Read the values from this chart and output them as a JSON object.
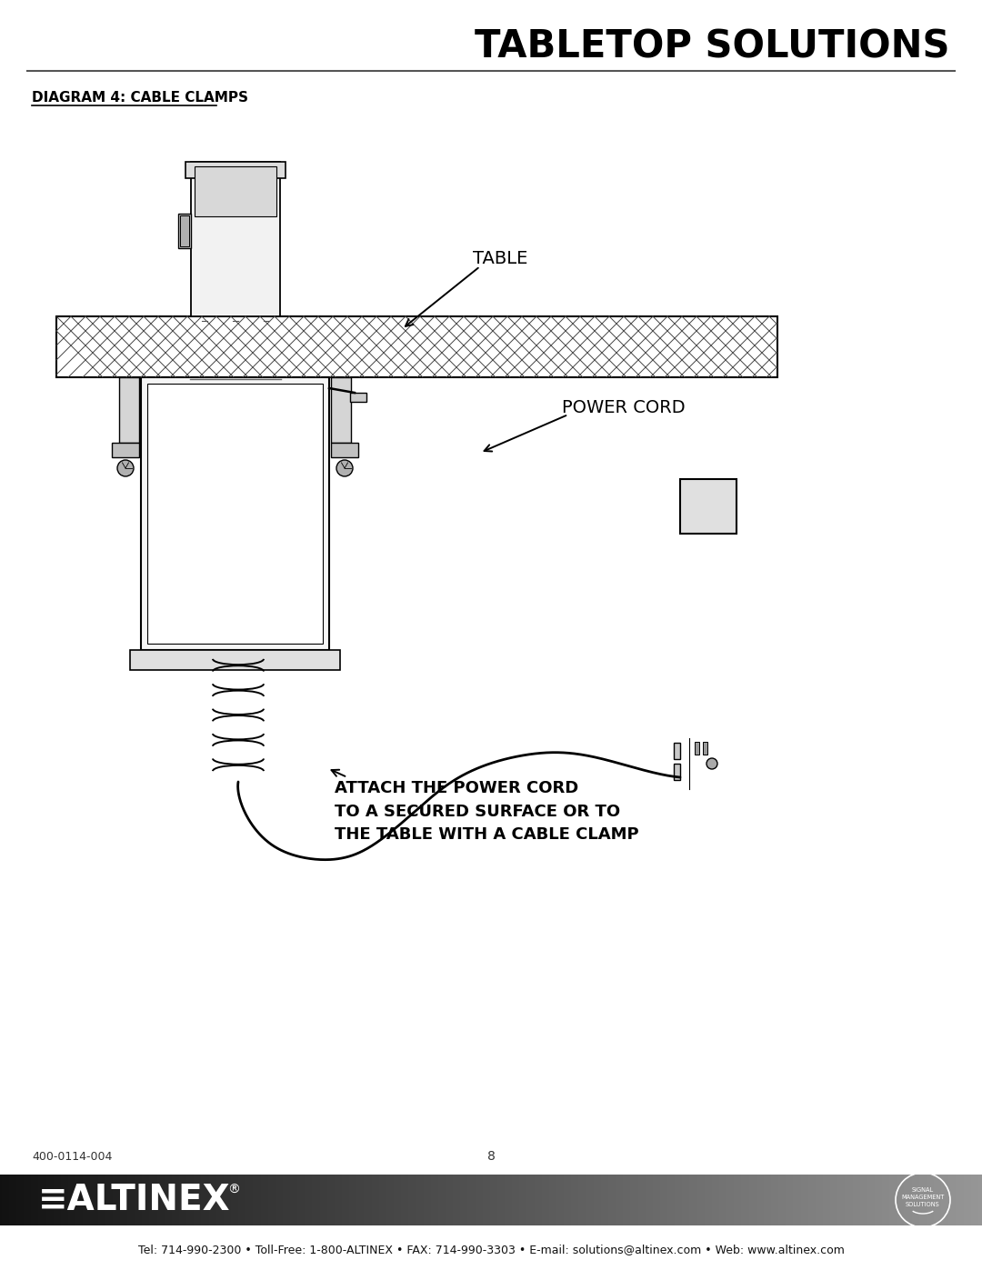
{
  "title": "TABLETOP SOLUTIONS",
  "diagram_label": "DIAGRAM 4: CABLE CLAMPS",
  "label_table": "TABLE",
  "label_power_cord": "POWER CORD",
  "label_attach": "ATTACH THE POWER CORD\nTO A SECURED SURFACE OR TO\nTHE TABLE WITH A CABLE CLAMP",
  "footer_left": "400-0114-004",
  "footer_center": "8",
  "footer_contact": "Tel: 714-990-2300 • Toll-Free: 1-800-ALTINEX • FAX: 714-990-3303 • E-mail: solutions@altinex.com • Web: www.altinex.com",
  "bg_color": "#ffffff",
  "line_color": "#000000",
  "gray_light": "#e8e8e8",
  "gray_mid": "#cccccc",
  "gray_dark": "#aaaaaa"
}
